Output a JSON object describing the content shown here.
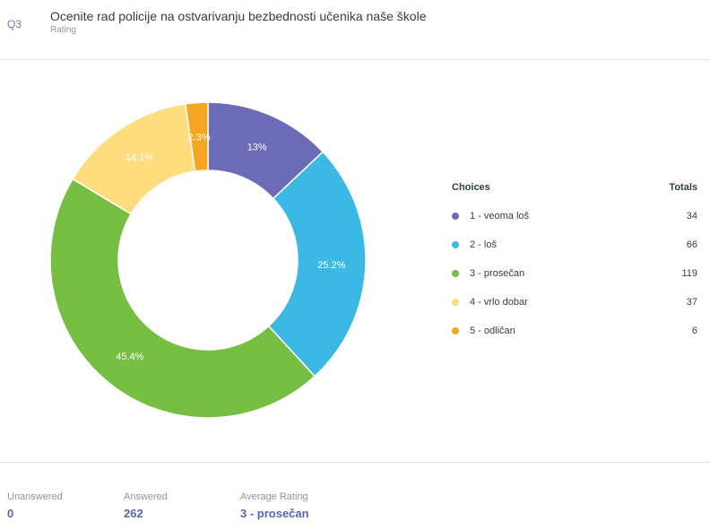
{
  "question": {
    "number": "Q3",
    "title": "Ocenite rad policije na ostvarivanju bezbednosti učenika naše škole",
    "type": "Rating"
  },
  "legend": {
    "choices_header": "Choices",
    "totals_header": "Totals"
  },
  "chart_data": {
    "type": "pie",
    "donut": true,
    "categories": [
      "1 - veoma loš",
      "2 - loš",
      "3 - prosečan",
      "4 - vrlo dobar",
      "5 - odličan"
    ],
    "values": [
      34,
      66,
      119,
      37,
      6
    ],
    "percent_labels": [
      "13%",
      "25.2%",
      "45.4%",
      "14.1%",
      "2.3%"
    ],
    "colors": [
      "#6b6bb6",
      "#3bb8e3",
      "#76bf42",
      "#ffdd7e",
      "#f5a623"
    ]
  },
  "stats": {
    "unanswered_label": "Unanswered",
    "unanswered_value": "0",
    "answered_label": "Answered",
    "answered_value": "262",
    "average_label": "Average Rating",
    "average_value": "3 - prosečan"
  }
}
